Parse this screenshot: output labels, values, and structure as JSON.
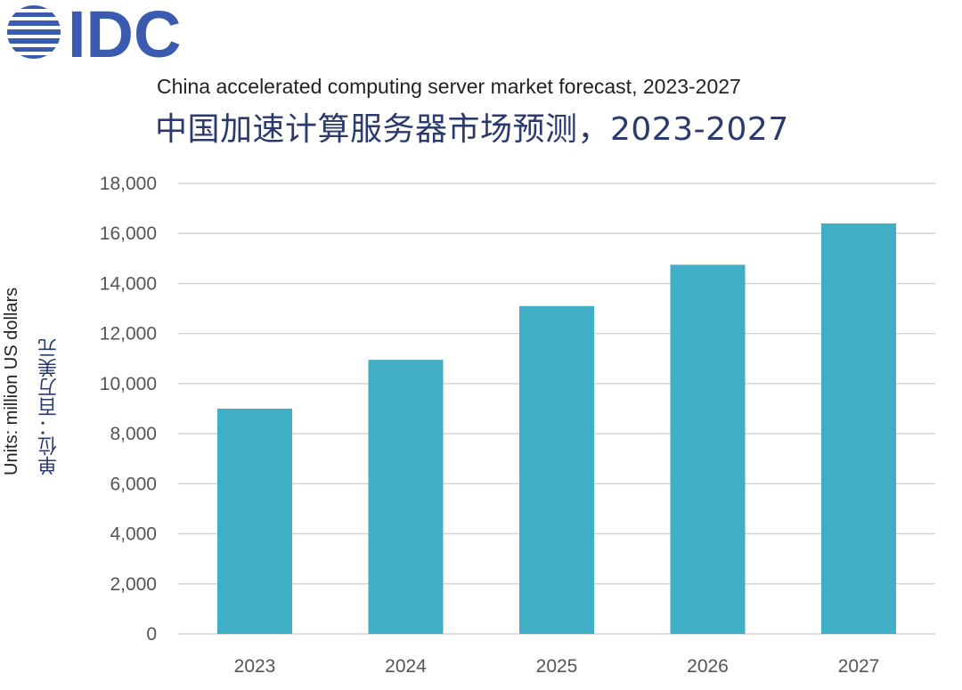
{
  "logo": {
    "text": "IDC",
    "color": "#3a5bb0"
  },
  "colors": {
    "bar": "#40aec4",
    "grid": "#d4d4d4",
    "tick_text": "#555555",
    "title_cn": "#2a3a6f"
  },
  "chart_data": {
    "type": "bar",
    "title": "China accelerated computing server market forecast, 2023-2027",
    "title_cn": "中国加速计算服务器市场预测，2023-2027",
    "xlabel": "",
    "ylabel": "Units: million US dollars",
    "ylabel_cn": "单位：百万美元",
    "categories": [
      "2023",
      "2024",
      "2025",
      "2026",
      "2027"
    ],
    "values": [
      9000,
      10950,
      13100,
      14750,
      16400
    ],
    "ylim": [
      0,
      18000
    ],
    "yticks": [
      0,
      2000,
      4000,
      6000,
      8000,
      10000,
      12000,
      14000,
      16000,
      18000
    ],
    "ytick_labels": [
      "0",
      "2,000",
      "4,000",
      "6,000",
      "8,000",
      "10,000",
      "12,000",
      "14,000",
      "16,000",
      "18,000"
    ],
    "grid": true,
    "legend": "none"
  }
}
